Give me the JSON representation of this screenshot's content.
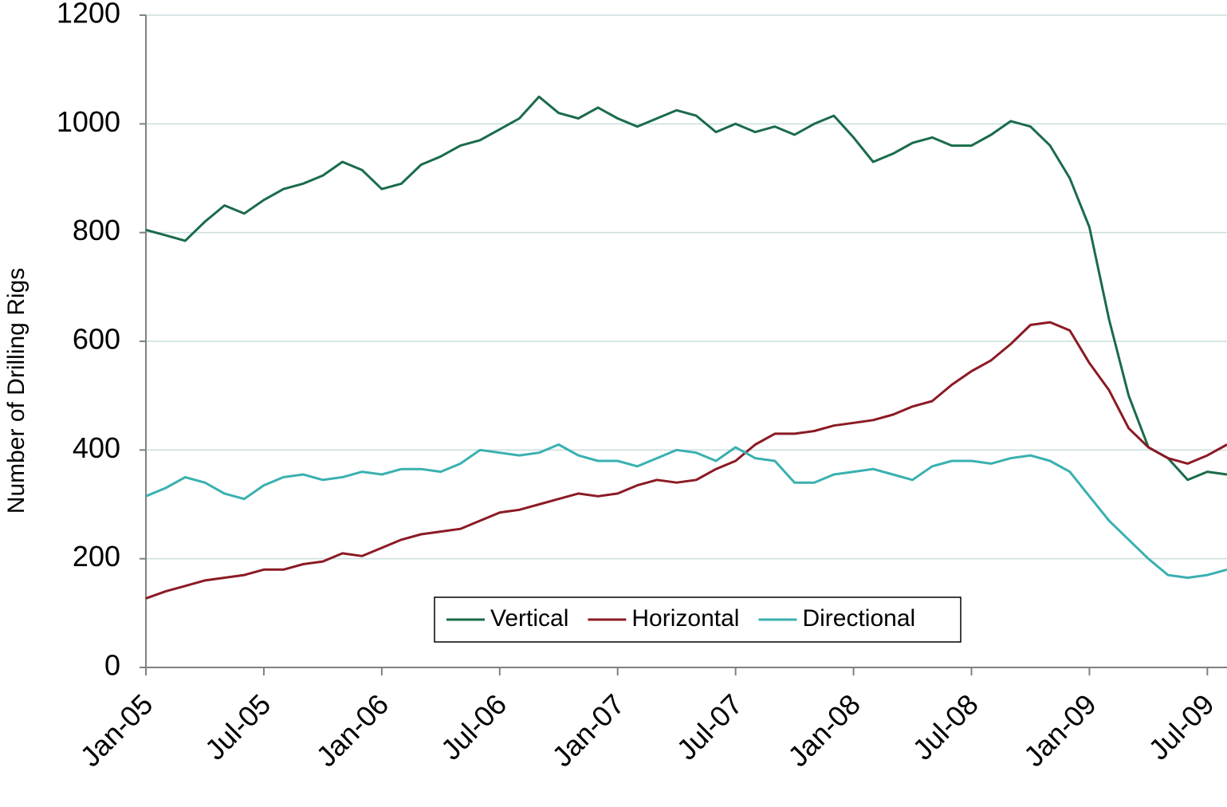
{
  "chart_data": {
    "type": "line",
    "y_label": "Number of Drilling Rigs",
    "categories": [
      "Jan-05",
      null,
      null,
      null,
      null,
      null,
      "Jul-05",
      null,
      null,
      null,
      null,
      null,
      "Jan-06",
      null,
      null,
      null,
      null,
      null,
      "Jul-06",
      null,
      null,
      null,
      null,
      null,
      "Jan-07",
      null,
      null,
      null,
      null,
      null,
      "Jul-07",
      null,
      null,
      null,
      null,
      null,
      "Jan-08",
      null,
      null,
      null,
      null,
      null,
      "Jul-08",
      null,
      null,
      null,
      null,
      null,
      "Jan-09",
      null,
      null,
      null,
      null,
      null,
      "Jul-09",
      null
    ],
    "series": [
      {
        "name": "Vertical",
        "color": "#1a6b4a",
        "values": [
          805,
          795,
          785,
          820,
          850,
          835,
          860,
          880,
          890,
          905,
          930,
          915,
          880,
          890,
          925,
          940,
          960,
          970,
          990,
          1010,
          1050,
          1020,
          1010,
          1030,
          1010,
          995,
          1010,
          1025,
          1015,
          985,
          1000,
          985,
          995,
          980,
          1000,
          1015,
          975,
          930,
          945,
          965,
          975,
          960,
          960,
          980,
          1005,
          995,
          960,
          900,
          810,
          640,
          500,
          405,
          385,
          345,
          360,
          355
        ]
      },
      {
        "name": "Horizontal",
        "color": "#8b1a24",
        "values": [
          127,
          140,
          150,
          160,
          165,
          170,
          180,
          180,
          190,
          195,
          210,
          205,
          220,
          235,
          245,
          250,
          255,
          270,
          285,
          290,
          300,
          310,
          320,
          315,
          320,
          335,
          345,
          340,
          345,
          365,
          380,
          410,
          430,
          430,
          435,
          445,
          450,
          455,
          465,
          480,
          490,
          520,
          545,
          565,
          595,
          630,
          635,
          620,
          560,
          510,
          440,
          405,
          385,
          375,
          390,
          410
        ]
      },
      {
        "name": "Directional",
        "color": "#3ab0b0",
        "values": [
          315,
          330,
          350,
          340,
          320,
          310,
          335,
          350,
          355,
          345,
          350,
          360,
          355,
          365,
          365,
          360,
          375,
          400,
          395,
          390,
          395,
          410,
          390,
          380,
          380,
          370,
          385,
          400,
          395,
          380,
          405,
          385,
          380,
          340,
          340,
          355,
          360,
          365,
          355,
          345,
          370,
          380,
          380,
          375,
          385,
          390,
          380,
          360,
          315,
          270,
          235,
          200,
          170,
          165,
          170,
          180
        ]
      }
    ],
    "ylim": [
      0,
      1200
    ],
    "yticks": [
      0,
      200,
      400,
      600,
      800,
      1000,
      1200
    ],
    "grid": true
  }
}
